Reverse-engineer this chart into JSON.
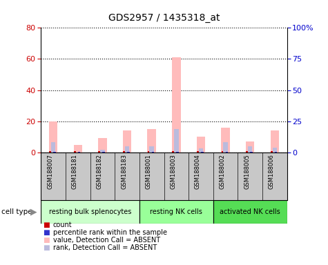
{
  "title": "GDS2957 / 1435318_at",
  "samples": [
    "GSM188007",
    "GSM188181",
    "GSM188182",
    "GSM188183",
    "GSM188001",
    "GSM188003",
    "GSM188004",
    "GSM188002",
    "GSM188005",
    "GSM188006"
  ],
  "value_absent": [
    20,
    5,
    9,
    14,
    15,
    61,
    10,
    16,
    7,
    14
  ],
  "rank_absent": [
    8,
    0,
    2,
    5,
    5,
    19,
    3,
    8,
    5,
    4
  ],
  "ylim_left": [
    0,
    80
  ],
  "ylim_right": [
    0,
    100
  ],
  "yticks_left": [
    0,
    20,
    40,
    60,
    80
  ],
  "yticks_right": [
    0,
    25,
    50,
    75,
    100
  ],
  "ytick_labels_right": [
    "0",
    "25",
    "50",
    "75",
    "100%"
  ],
  "cell_groups": [
    {
      "label": "resting bulk splenocytes",
      "start": 0,
      "end": 4,
      "color": "#ccffcc"
    },
    {
      "label": "resting NK cells",
      "start": 4,
      "end": 7,
      "color": "#99ff99"
    },
    {
      "label": "activated NK cells",
      "start": 7,
      "end": 10,
      "color": "#55dd55"
    }
  ],
  "legend_items": [
    {
      "label": "count",
      "color": "#cc0000"
    },
    {
      "label": "percentile rank within the sample",
      "color": "#0000cc"
    },
    {
      "label": "value, Detection Call = ABSENT",
      "color": "#ffbbbb"
    },
    {
      "label": "rank, Detection Call = ABSENT",
      "color": "#bbbbdd"
    }
  ],
  "value_absent_color": "#ffbbbb",
  "rank_absent_color": "#bbbbdd",
  "count_color": "#cc0000",
  "percentile_color": "#3333cc",
  "left_tick_color": "#cc0000",
  "right_tick_color": "#0000cc"
}
